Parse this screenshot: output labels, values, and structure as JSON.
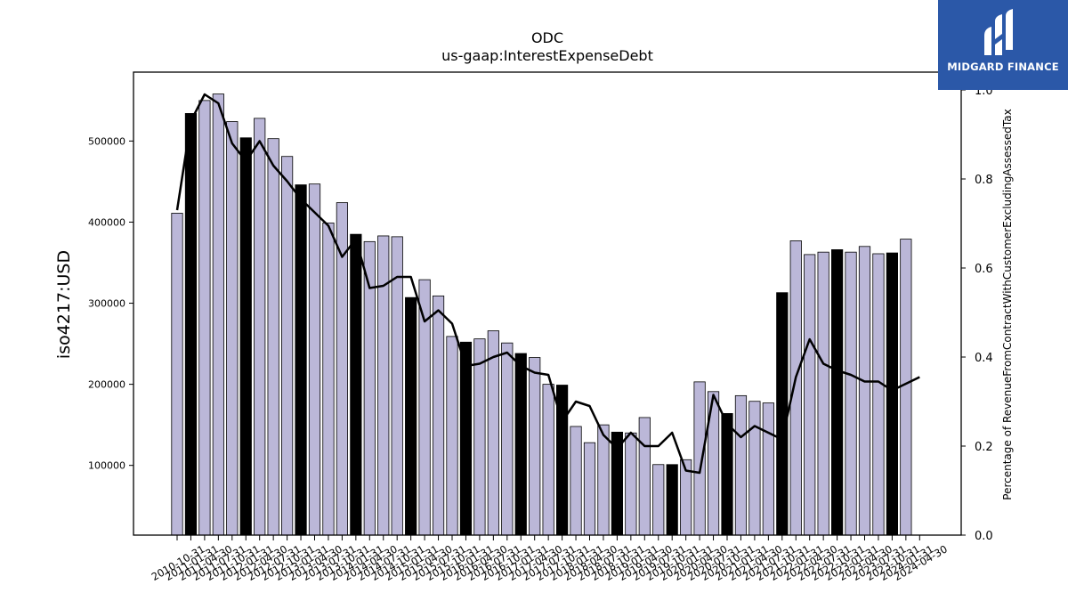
{
  "logo": {
    "text": "MIDGARD FINANCE"
  },
  "chart_data": {
    "type": "bar",
    "title": "ODC",
    "subtitle": "us-gaap:InterestExpenseDebt",
    "ylabel": "iso4217:USD",
    "y2label": "Percentage of RevenueFromContractWithCustomerExcludingAssessedTax",
    "ylim": [
      14000,
      585000
    ],
    "y2lim": [
      0.0,
      1.0
    ],
    "yticks": [
      100000,
      200000,
      300000,
      400000,
      500000
    ],
    "y2ticks": [
      0.0,
      0.2,
      0.4,
      0.6,
      0.8,
      1.0
    ],
    "categories": [
      "2010-10-31",
      "2011-01-31",
      "2011-04-30",
      "2011-07-31",
      "2011-10-31",
      "2012-01-31",
      "2012-04-30",
      "2012-07-31",
      "2012-10-31",
      "2013-01-31",
      "2013-04-30",
      "2013-07-31",
      "2013-10-31",
      "2014-01-31",
      "2014-04-30",
      "2014-07-31",
      "2014-10-31",
      "2015-01-31",
      "2015-04-30",
      "2015-07-31",
      "2015-10-31",
      "2016-01-31",
      "2016-04-30",
      "2016-07-31",
      "2016-10-31",
      "2017-01-31",
      "2017-04-30",
      "2017-07-31",
      "2017-10-31",
      "2018-01-31",
      "2018-04-30",
      "2018-07-31",
      "2018-10-31",
      "2019-01-31",
      "2019-04-30",
      "2019-07-31",
      "2019-10-31",
      "2020-01-31",
      "2020-04-30",
      "2020-07-31",
      "2020-10-31",
      "2021-01-31",
      "2021-04-30",
      "2021-07-31",
      "2021-10-31",
      "2022-01-31",
      "2022-04-30",
      "2022-07-31",
      "2022-10-31",
      "2023-01-31",
      "2023-04-30",
      "2023-07-31",
      "2023-10-31",
      "2024-01-31",
      "2024-04-30"
    ],
    "series": [
      {
        "kind": "bar",
        "values": [
          411000,
          534000,
          550000,
          558000,
          524000,
          504000,
          528000,
          503000,
          481000,
          446000,
          447000,
          399000,
          424000,
          385000,
          376000,
          383000,
          382000,
          307000,
          329000,
          309000,
          259000,
          252000,
          256000,
          266000,
          251000,
          238000,
          233000,
          200000,
          199000,
          148000,
          128000,
          150000,
          141000,
          140000,
          159000,
          101000,
          101000,
          107000,
          203000,
          191000,
          164000,
          186000,
          179000,
          177000,
          313000,
          377000,
          360000,
          363000,
          366000,
          363000,
          370000,
          361000,
          362000,
          379000,
          0
        ],
        "highlighted": [
          false,
          true,
          false,
          false,
          false,
          true,
          false,
          false,
          false,
          true,
          false,
          false,
          false,
          true,
          false,
          false,
          false,
          true,
          false,
          false,
          false,
          true,
          false,
          false,
          false,
          true,
          false,
          false,
          true,
          false,
          false,
          false,
          true,
          false,
          false,
          false,
          true,
          false,
          false,
          false,
          true,
          false,
          false,
          false,
          true,
          false,
          false,
          false,
          true,
          false,
          false,
          false,
          true,
          false,
          false
        ],
        "colors": {
          "normal": "#bbb7d8",
          "highlighted": "#000000"
        }
      },
      {
        "kind": "line",
        "axis": "right",
        "values": [
          0.73,
          0.93,
          0.99,
          0.97,
          0.88,
          0.84,
          0.885,
          0.83,
          0.795,
          0.755,
          0.725,
          0.695,
          0.625,
          0.665,
          0.555,
          0.56,
          0.58,
          0.58,
          0.48,
          0.505,
          0.475,
          0.38,
          0.385,
          0.4,
          0.41,
          0.38,
          0.365,
          0.36,
          0.255,
          0.3,
          0.29,
          0.225,
          0.195,
          0.23,
          0.2,
          0.2,
          0.23,
          0.145,
          0.14,
          0.315,
          0.25,
          0.22,
          0.245,
          0.23,
          0.215,
          0.355,
          0.44,
          0.385,
          0.37,
          0.36,
          0.345,
          0.345,
          0.325,
          0.34,
          0.355
        ],
        "color": "#000000"
      }
    ],
    "grid": false,
    "legend": "none"
  }
}
